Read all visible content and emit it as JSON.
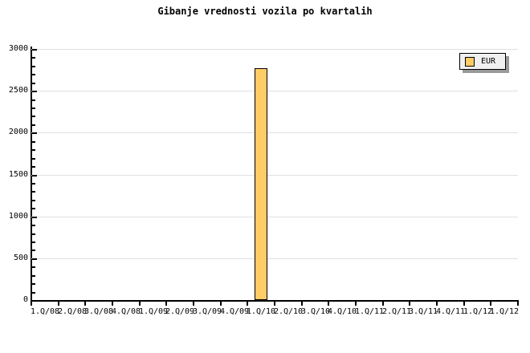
{
  "chart_data": {
    "type": "bar",
    "title": "Gibanje vrednosti vozila po kvartalih",
    "categories": [
      "1.Q/08",
      "2.Q/08",
      "3.Q/08",
      "4.Q/08",
      "1.Q/09",
      "2.Q/09",
      "3.Q/09",
      "4.Q/09",
      "1.Q/10",
      "2.Q/10",
      "3.Q/10",
      "4.Q/10",
      "1.Q/11",
      "2.Q/11",
      "3.Q/11",
      "4.Q/11",
      "1.Q/12",
      "1.Q/12"
    ],
    "series": [
      {
        "name": "EUR",
        "values": [
          null,
          null,
          null,
          null,
          null,
          null,
          null,
          null,
          2770,
          null,
          null,
          null,
          null,
          null,
          null,
          null,
          null,
          null
        ]
      }
    ],
    "xlabel": "",
    "ylabel": "",
    "ylim": [
      0,
      3000
    ],
    "ytick_step": 500,
    "ytick_minor_step": 100,
    "ytick_labels": [
      "0",
      "500",
      "1000",
      "1500",
      "2000",
      "2500",
      "3000"
    ],
    "grid": "horizontal-major",
    "legend_position": "top-right",
    "colors": {
      "bar_fill": "#FFCC66",
      "bar_border": "#000000",
      "grid_line": "#e0e0e0",
      "axis": "#000000",
      "legend_bg": "#f0f0f0",
      "legend_shadow": "#999999",
      "text": "#000000",
      "background": "#ffffff"
    }
  }
}
